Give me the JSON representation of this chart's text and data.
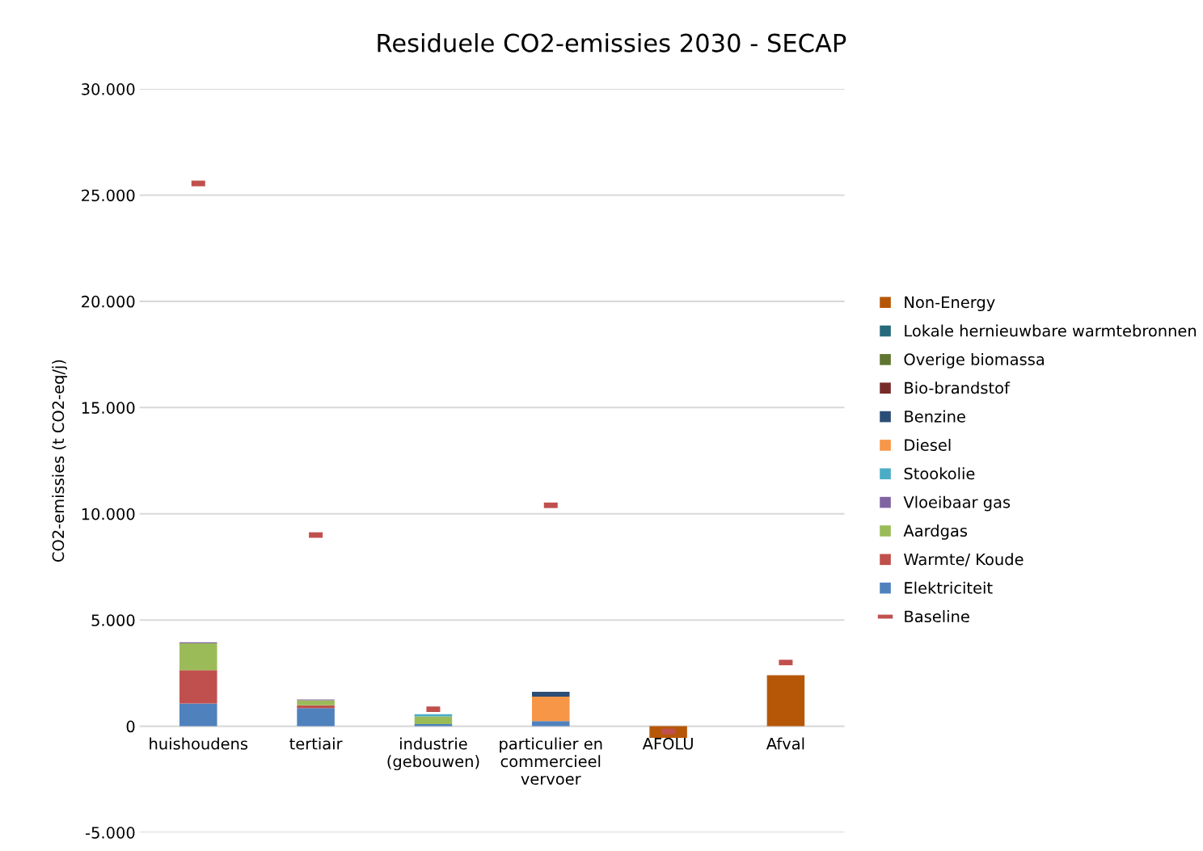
{
  "chart_data": {
    "type": "bar",
    "stacked": true,
    "title": "Residuele CO2-emissies 2030 - SECAP",
    "ylabel": "CO2-emissies (t CO2-eq/j)",
    "categories": [
      "huishoudens",
      "tertiair",
      "industrie\n(gebouwen)",
      "particulier en\ncommercieel\nvervoer",
      "AFOLU",
      "Afval"
    ],
    "series": [
      {
        "name": "Elektriciteit",
        "color": "#4f81bd",
        "values": [
          1070,
          850,
          100,
          240,
          0,
          0
        ]
      },
      {
        "name": "Warmte/ Koude",
        "color": "#c0504d",
        "values": [
          1570,
          130,
          0,
          0,
          0,
          0
        ]
      },
      {
        "name": "Aardgas",
        "color": "#9bbb59",
        "values": [
          1260,
          240,
          360,
          0,
          0,
          0
        ]
      },
      {
        "name": "Vloeibaar gas",
        "color": "#8064a2",
        "values": [
          50,
          40,
          0,
          0,
          0,
          0
        ]
      },
      {
        "name": "Stookolie",
        "color": "#4bacc6",
        "values": [
          0,
          0,
          110,
          0,
          0,
          0
        ]
      },
      {
        "name": "Diesel",
        "color": "#f79646",
        "values": [
          0,
          0,
          0,
          1150,
          0,
          0
        ]
      },
      {
        "name": "Benzine",
        "color": "#2c4d75",
        "values": [
          0,
          0,
          0,
          230,
          0,
          0
        ]
      },
      {
        "name": "Bio-brandstof",
        "color": "#772c2a",
        "values": [
          0,
          0,
          0,
          0,
          0,
          0
        ]
      },
      {
        "name": "Overige biomassa",
        "color": "#5f7530",
        "values": [
          0,
          0,
          0,
          0,
          0,
          0
        ]
      },
      {
        "name": "Lokale hernieuwbare warmtebronnen",
        "color": "#276a7c",
        "values": [
          0,
          0,
          0,
          0,
          0,
          0
        ]
      },
      {
        "name": "Non-Energy",
        "color": "#b65708",
        "values": [
          0,
          0,
          0,
          0,
          -550,
          2400
        ]
      },
      {
        "name": "Baseline",
        "type": "scatter",
        "color": "#c0504d",
        "values": [
          25550,
          9000,
          800,
          10400,
          -250,
          3000
        ]
      }
    ],
    "ylim": [
      -5000,
      30000
    ],
    "yticks": [
      {
        "value": -5000,
        "label": "-5.000"
      },
      0,
      {
        "value": 5000,
        "label": "5.000"
      },
      {
        "value": 10000,
        "label": "10.000"
      },
      {
        "value": 15000,
        "label": "15.000"
      },
      {
        "value": 20000,
        "label": "20.000"
      },
      {
        "value": 25000,
        "label": "25.000"
      },
      {
        "value": 30000,
        "label": "30.000"
      }
    ],
    "grid": "y",
    "legend": "right"
  }
}
